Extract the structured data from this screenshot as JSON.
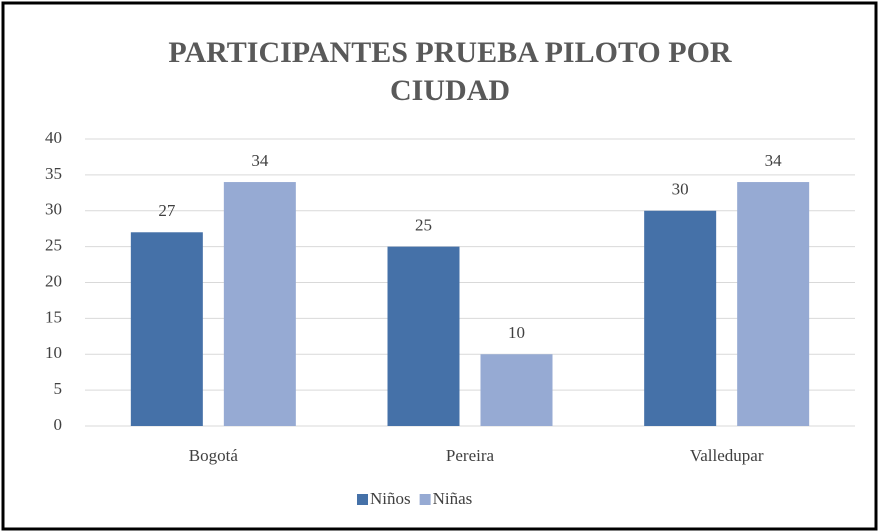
{
  "chart_data": {
    "type": "bar",
    "title": "PARTICIPANTES PRUEBA PILOTO POR CIUDAD",
    "categories": [
      "Bogotá",
      "Pereira",
      "Valledupar"
    ],
    "series": [
      {
        "name": "Niños",
        "color": "#4571a8",
        "values": [
          27,
          25,
          30
        ]
      },
      {
        "name": "Niñas",
        "color": "#96aad3",
        "values": [
          34,
          10,
          34
        ]
      }
    ],
    "ylim": [
      0,
      40
    ],
    "yticks": [
      0,
      5,
      10,
      15,
      20,
      25,
      30,
      35,
      40
    ],
    "grid": true,
    "legend": "bottom"
  }
}
